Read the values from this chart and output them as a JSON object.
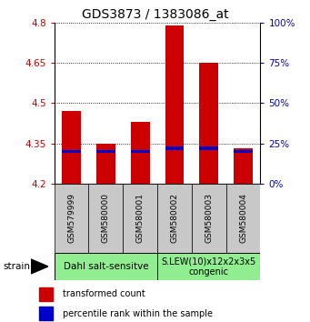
{
  "title": "GDS3873 / 1383086_at",
  "samples": [
    "GSM579999",
    "GSM580000",
    "GSM580001",
    "GSM580002",
    "GSM580003",
    "GSM580004"
  ],
  "transformed_counts": [
    4.47,
    4.35,
    4.43,
    4.79,
    4.65,
    4.33
  ],
  "percentile_ranks": [
    20,
    20,
    20,
    22,
    22,
    20
  ],
  "y_min": 4.2,
  "y_max": 4.8,
  "y_ticks": [
    4.2,
    4.35,
    4.5,
    4.65,
    4.8
  ],
  "y_right_ticks": [
    0,
    25,
    50,
    75,
    100
  ],
  "bar_color": "#cc0000",
  "percentile_color": "#0000cc",
  "bar_width": 0.55,
  "group1_label": "Dahl salt-sensitve",
  "group2_label": "S.LEW(10)x12x2x3x5\ncongenic",
  "group_color": "#90ee90",
  "sample_box_color": "#c8c8c8",
  "strain_label": "strain",
  "legend_red": "transformed count",
  "legend_blue": "percentile rank within the sample",
  "title_fontsize": 10,
  "tick_fontsize": 7.5,
  "sample_fontsize": 6.5,
  "group_fontsize": 7.5,
  "legend_fontsize": 7,
  "axis_label_color_red": "#cc0000",
  "axis_label_color_blue": "#0000cc"
}
